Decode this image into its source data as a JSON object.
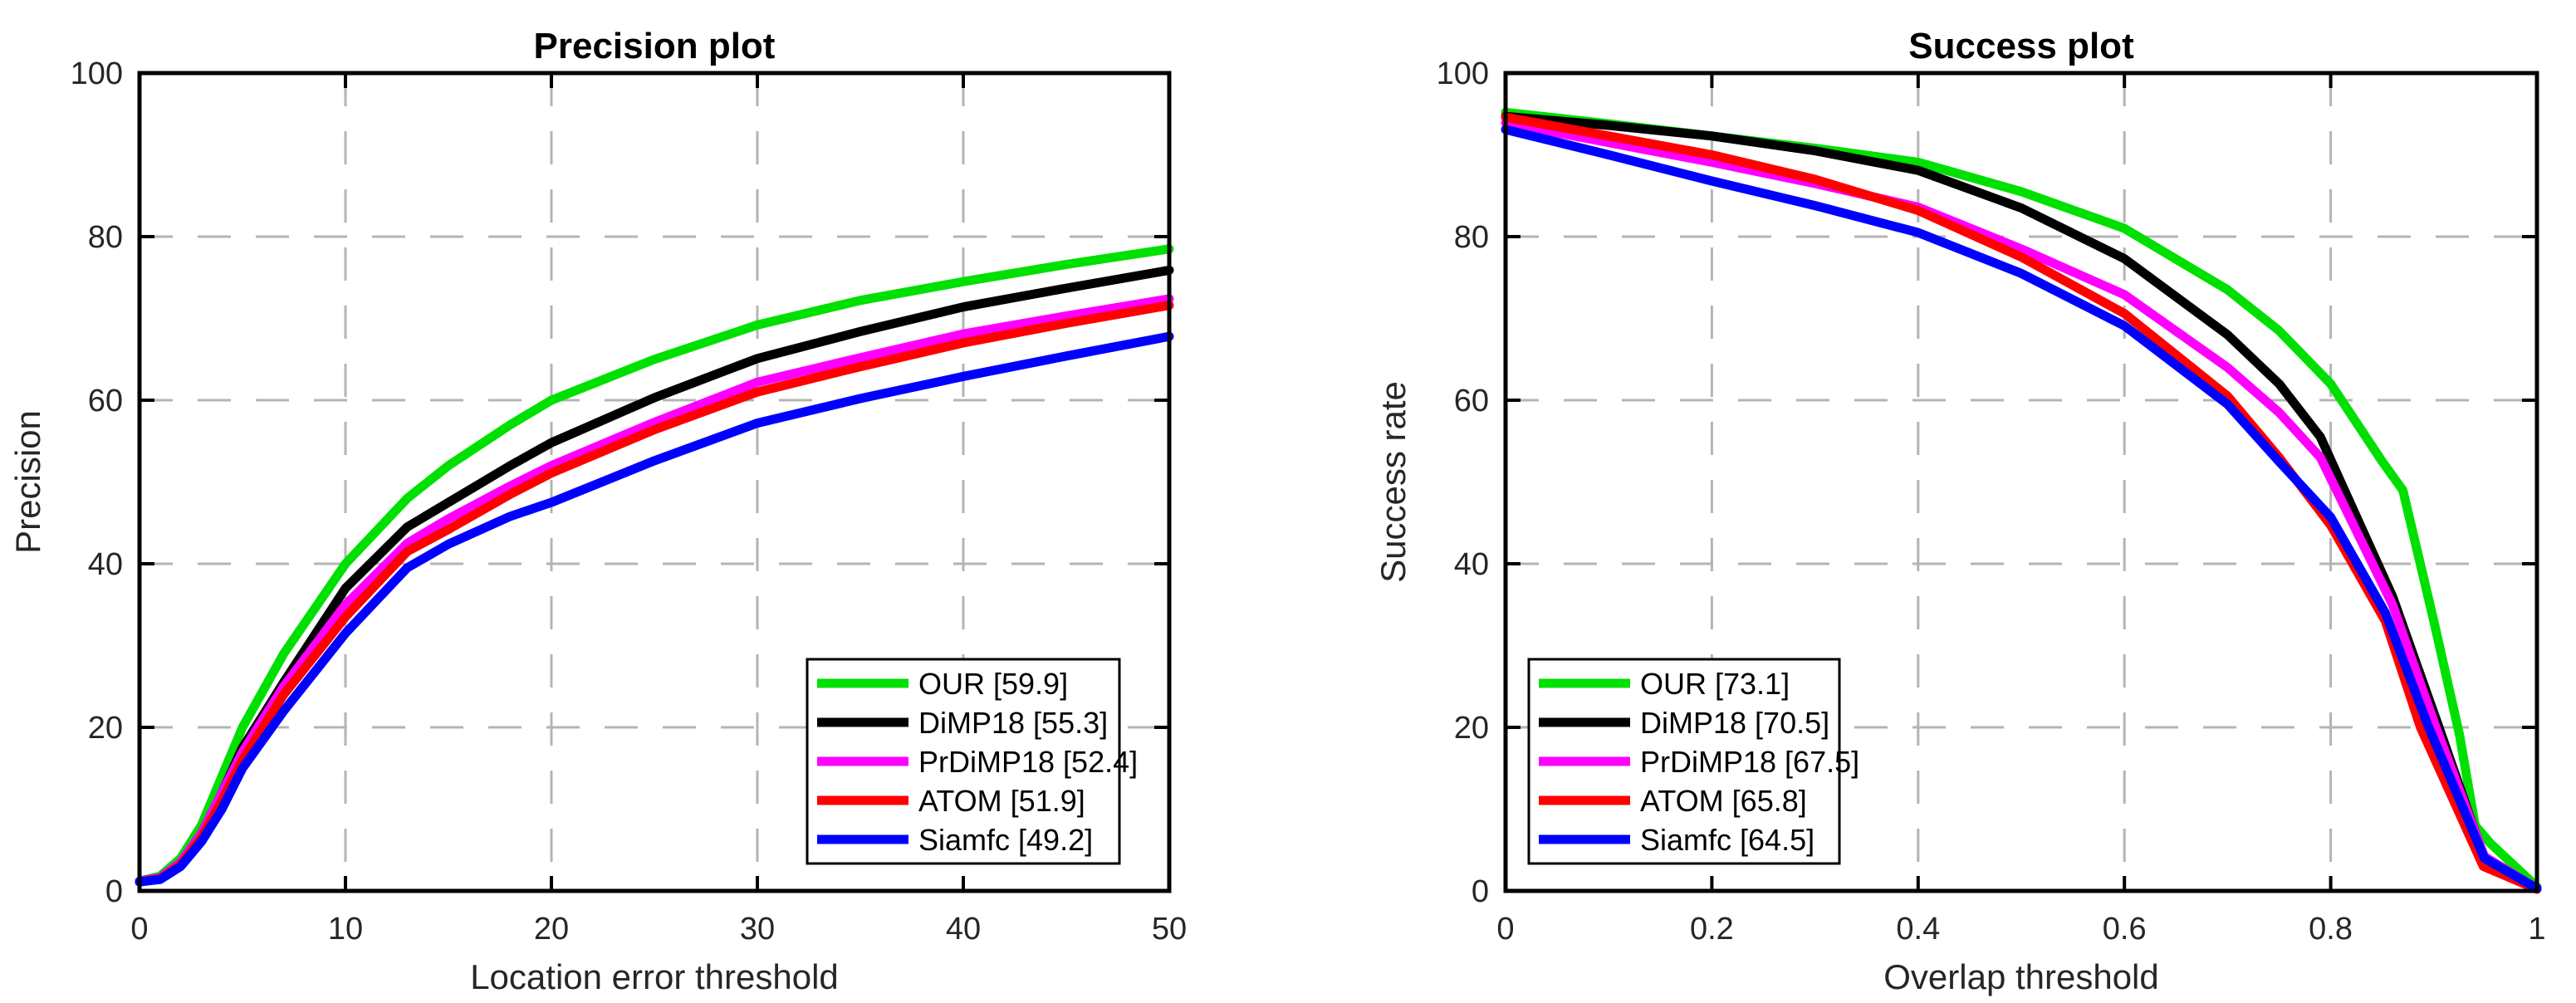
{
  "figure": {
    "background": "#ffffff",
    "text_color": "#262626",
    "grid_color": "#b4b4b4",
    "axis_color": "#000000"
  },
  "chart_data": [
    {
      "type": "line",
      "title": "Precision plot",
      "xlabel": "Location error threshold",
      "ylabel": "Precision",
      "xlim": [
        0,
        50
      ],
      "ylim": [
        0,
        100
      ],
      "xticks": [
        0,
        10,
        20,
        30,
        40,
        50
      ],
      "xtick_labels": [
        "0",
        "10",
        "20",
        "30",
        "40",
        "50"
      ],
      "yticks": [
        0,
        20,
        40,
        60,
        80,
        100
      ],
      "ytick_labels": [
        "0",
        "20",
        "40",
        "60",
        "80",
        "100"
      ],
      "grid": true,
      "grid_style": "dashed",
      "legend_position": "inside-bottom-right",
      "series": [
        {
          "name": "OUR [59.9]",
          "score": 59.9,
          "color": "#00e000",
          "points": [
            [
              0,
              1.2
            ],
            [
              1,
              1.8
            ],
            [
              2,
              4
            ],
            [
              3,
              8
            ],
            [
              4,
              14
            ],
            [
              5,
              20
            ],
            [
              7,
              29
            ],
            [
              10,
              40
            ],
            [
              13,
              48
            ],
            [
              15,
              52
            ],
            [
              18,
              57
            ],
            [
              20,
              60
            ],
            [
              25,
              65
            ],
            [
              30,
              69.2
            ],
            [
              35,
              72.2
            ],
            [
              40,
              74.5
            ],
            [
              45,
              76.6
            ],
            [
              50,
              78.5
            ]
          ]
        },
        {
          "name": "DiMP18 [55.3]",
          "score": 55.3,
          "color": "#000000",
          "points": [
            [
              0,
              1.2
            ],
            [
              1,
              1.6
            ],
            [
              2,
              3.5
            ],
            [
              3,
              7
            ],
            [
              4,
              12
            ],
            [
              5,
              17.5
            ],
            [
              7,
              25.5
            ],
            [
              10,
              37
            ],
            [
              13,
              44.5
            ],
            [
              15,
              47.5
            ],
            [
              18,
              52
            ],
            [
              20,
              54.8
            ],
            [
              25,
              60.3
            ],
            [
              30,
              65.1
            ],
            [
              35,
              68.4
            ],
            [
              40,
              71.4
            ],
            [
              45,
              73.7
            ],
            [
              50,
              75.9
            ]
          ]
        },
        {
          "name": "PrDiMP18 [52.4]",
          "score": 52.4,
          "color": "#ff00ff",
          "points": [
            [
              0,
              1.2
            ],
            [
              1,
              1.6
            ],
            [
              2,
              3.5
            ],
            [
              3,
              7
            ],
            [
              4,
              12
            ],
            [
              5,
              17
            ],
            [
              7,
              25
            ],
            [
              10,
              35
            ],
            [
              13,
              42.5
            ],
            [
              15,
              45.5
            ],
            [
              18,
              49.5
            ],
            [
              20,
              52
            ],
            [
              25,
              57.3
            ],
            [
              30,
              62.2
            ],
            [
              35,
              65.2
            ],
            [
              40,
              68.1
            ],
            [
              45,
              70.3
            ],
            [
              50,
              72.4
            ]
          ]
        },
        {
          "name": "ATOM [51.9]",
          "score": 51.9,
          "color": "#ff0000",
          "points": [
            [
              0,
              1.1
            ],
            [
              1,
              1.5
            ],
            [
              2,
              3.2
            ],
            [
              3,
              6.5
            ],
            [
              4,
              11
            ],
            [
              5,
              16
            ],
            [
              7,
              24
            ],
            [
              10,
              33.5
            ],
            [
              13,
              41.5
            ],
            [
              15,
              44.2
            ],
            [
              18,
              48.5
            ],
            [
              20,
              51.1
            ],
            [
              25,
              56.4
            ],
            [
              30,
              61
            ],
            [
              35,
              64.1
            ],
            [
              40,
              67
            ],
            [
              45,
              69.4
            ],
            [
              50,
              71.6
            ]
          ]
        },
        {
          "name": "Siamfc [49.2]",
          "score": 49.2,
          "color": "#0000ff",
          "points": [
            [
              0,
              1.1
            ],
            [
              1,
              1.4
            ],
            [
              2,
              3
            ],
            [
              3,
              6
            ],
            [
              4,
              10
            ],
            [
              5,
              15
            ],
            [
              7,
              22
            ],
            [
              10,
              31.5
            ],
            [
              13,
              39.5
            ],
            [
              15,
              42.4
            ],
            [
              18,
              45.8
            ],
            [
              20,
              47.5
            ],
            [
              25,
              52.6
            ],
            [
              30,
              57.2
            ],
            [
              35,
              60.2
            ],
            [
              40,
              62.9
            ],
            [
              45,
              65.4
            ],
            [
              50,
              67.8
            ]
          ]
        }
      ]
    },
    {
      "type": "line",
      "title": "Success plot",
      "xlabel": "Overlap threshold",
      "ylabel": "Success rate",
      "xlim": [
        0,
        1
      ],
      "ylim": [
        0,
        100
      ],
      "xticks": [
        0,
        0.2,
        0.4,
        0.6,
        0.8,
        1
      ],
      "xtick_labels": [
        "0",
        "0.2",
        "0.4",
        "0.6",
        "0.8",
        "1"
      ],
      "yticks": [
        0,
        20,
        40,
        60,
        80,
        100
      ],
      "ytick_labels": [
        "0",
        "20",
        "40",
        "60",
        "80",
        "100"
      ],
      "grid": true,
      "grid_style": "dashed",
      "legend_position": "inside-bottom-left",
      "series": [
        {
          "name": "OUR [73.1]",
          "score": 73.1,
          "color": "#00e000",
          "points": [
            [
              0,
              95.2
            ],
            [
              0.1,
              93.8
            ],
            [
              0.2,
              92.3
            ],
            [
              0.3,
              90.8
            ],
            [
              0.4,
              89.1
            ],
            [
              0.5,
              85.5
            ],
            [
              0.6,
              81
            ],
            [
              0.7,
              73.5
            ],
            [
              0.75,
              68.5
            ],
            [
              0.8,
              62
            ],
            [
              0.85,
              52.5
            ],
            [
              0.87,
              49
            ],
            [
              0.9,
              33
            ],
            [
              0.925,
              19
            ],
            [
              0.94,
              8
            ],
            [
              0.955,
              5.8
            ],
            [
              1,
              0.5
            ]
          ]
        },
        {
          "name": "DiMP18 [70.5]",
          "score": 70.5,
          "color": "#000000",
          "points": [
            [
              0,
              94.7
            ],
            [
              0.1,
              93.6
            ],
            [
              0.2,
              92.3
            ],
            [
              0.3,
              90.5
            ],
            [
              0.4,
              88.1
            ],
            [
              0.5,
              83.5
            ],
            [
              0.6,
              77.3
            ],
            [
              0.7,
              68
            ],
            [
              0.75,
              62
            ],
            [
              0.79,
              55.5
            ],
            [
              0.86,
              36
            ],
            [
              0.905,
              20
            ],
            [
              0.949,
              4
            ],
            [
              1,
              0.3
            ]
          ]
        },
        {
          "name": "PrDiMP18 [67.5]",
          "score": 67.5,
          "color": "#ff00ff",
          "points": [
            [
              0,
              93.9
            ],
            [
              0.1,
              91.5
            ],
            [
              0.2,
              89.1
            ],
            [
              0.3,
              86.5
            ],
            [
              0.4,
              83.6
            ],
            [
              0.5,
              78.5
            ],
            [
              0.6,
              72.9
            ],
            [
              0.7,
              64
            ],
            [
              0.75,
              58.5
            ],
            [
              0.79,
              53
            ],
            [
              0.86,
              35
            ],
            [
              0.902,
              20
            ],
            [
              0.949,
              4.2
            ],
            [
              1,
              0.3
            ]
          ]
        },
        {
          "name": "ATOM [65.8]",
          "score": 65.8,
          "color": "#ff0000",
          "points": [
            [
              0,
              94.6
            ],
            [
              0.1,
              92.3
            ],
            [
              0.2,
              90
            ],
            [
              0.3,
              87
            ],
            [
              0.4,
              83.2
            ],
            [
              0.5,
              77.5
            ],
            [
              0.6,
              70.6
            ],
            [
              0.7,
              60.5
            ],
            [
              0.75,
              53
            ],
            [
              0.8,
              44.7
            ],
            [
              0.853,
              33
            ],
            [
              0.887,
              20
            ],
            [
              0.948,
              3
            ],
            [
              1,
              0.2
            ]
          ]
        },
        {
          "name": "Siamfc [64.5]",
          "score": 64.5,
          "color": "#0000ff",
          "points": [
            [
              0,
              93.1
            ],
            [
              0.1,
              90
            ],
            [
              0.2,
              86.8
            ],
            [
              0.3,
              83.8
            ],
            [
              0.4,
              80.5
            ],
            [
              0.5,
              75.5
            ],
            [
              0.6,
              69.1
            ],
            [
              0.7,
              59.5
            ],
            [
              0.75,
              52.5
            ],
            [
              0.8,
              45.7
            ],
            [
              0.853,
              34
            ],
            [
              0.895,
              20
            ],
            [
              0.949,
              4
            ],
            [
              1,
              0.3
            ]
          ]
        }
      ]
    }
  ]
}
